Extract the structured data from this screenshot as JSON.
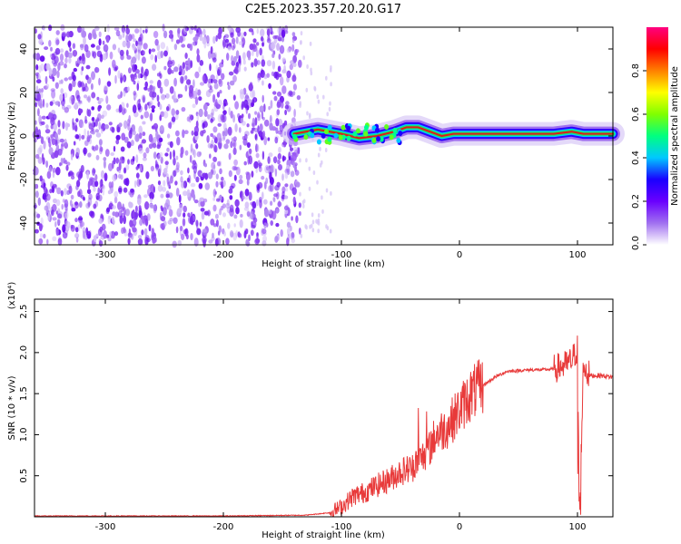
{
  "title": "C2E5.2023.357.20.20.G17",
  "colors": {
    "snr_line": "#e83a3a",
    "spectrogram_noise": "#7b2cf0",
    "frame": "#000000"
  },
  "chart_data": [
    {
      "type": "heatmap",
      "name": "spectrogram",
      "xlabel": "Height of straight line (km)",
      "ylabel": "Frequency (Hz)",
      "xlim": [
        -360,
        130
      ],
      "ylim": [
        -50,
        50
      ],
      "x_ticks": [
        -300,
        -200,
        -100,
        0,
        100
      ],
      "x_tick_labels": [
        "-300",
        "-200",
        "-100",
        "0",
        "100"
      ],
      "y_ticks": [
        -40,
        -20,
        0,
        20,
        40
      ],
      "y_tick_labels": [
        "-40",
        "-20",
        "0",
        "20",
        "40"
      ],
      "noise_region_x": [
        -360,
        -135
      ],
      "signal_trace": {
        "x": [
          -140,
          -120,
          -100,
          -85,
          -70,
          -55,
          -45,
          -35,
          -25,
          -15,
          -5,
          5,
          20,
          40,
          60,
          80,
          95,
          105,
          130
        ],
        "y": [
          1,
          3,
          1,
          -1,
          0,
          2,
          4,
          4,
          2,
          0,
          1,
          1,
          1,
          1,
          1,
          1,
          2,
          1,
          1
        ]
      },
      "colorbar": {
        "label": "Normalized spectral amplitude",
        "range": [
          0.0,
          1.0
        ],
        "ticks": [
          0.0,
          0.2,
          0.4,
          0.6,
          0.8
        ],
        "tick_labels": [
          "0.0",
          "0.2",
          "0.4",
          "0.6",
          "0.8"
        ],
        "colormap": [
          "#ffffff",
          "#a070f0",
          "#6a00ff",
          "#1a00ff",
          "#00c8ff",
          "#00ff80",
          "#80ff00",
          "#ffff00",
          "#ff8000",
          "#ff0000",
          "#ff0080"
        ]
      }
    },
    {
      "type": "line",
      "name": "snr",
      "xlabel": "Height of straight line (km)",
      "ylabel": "SNR (10 * v/v)",
      "y_multiplier": "(x10⁴)",
      "xlim": [
        -360,
        130
      ],
      "ylim": [
        0,
        2.65
      ],
      "x_ticks": [
        -300,
        -200,
        -100,
        0,
        100
      ],
      "x_tick_labels": [
        "-300",
        "-200",
        "-100",
        "0",
        "100"
      ],
      "y_ticks": [
        0.5,
        1.0,
        1.5,
        2.0,
        2.5
      ],
      "y_tick_labels": [
        "0.5",
        "1.0",
        "1.5",
        "2.0",
        "2.5"
      ],
      "series": [
        {
          "x": [
            -360,
            -200,
            -130,
            -110,
            -100,
            -90,
            -80,
            -70,
            -60,
            -50,
            -40,
            -30,
            -25,
            -20,
            -10,
            0,
            10,
            20,
            30,
            40,
            50,
            60,
            70,
            80,
            90,
            95,
            100,
            102,
            105,
            110,
            120,
            130
          ],
          "y": [
            0.01,
            0.01,
            0.02,
            0.05,
            0.12,
            0.25,
            0.3,
            0.38,
            0.45,
            0.55,
            0.6,
            0.75,
            0.85,
            1.0,
            1.1,
            1.3,
            1.5,
            1.6,
            1.7,
            1.77,
            1.78,
            1.79,
            1.79,
            1.8,
            1.85,
            1.9,
            2.05,
            0.15,
            1.85,
            1.72,
            1.72,
            1.7
          ]
        }
      ]
    }
  ]
}
